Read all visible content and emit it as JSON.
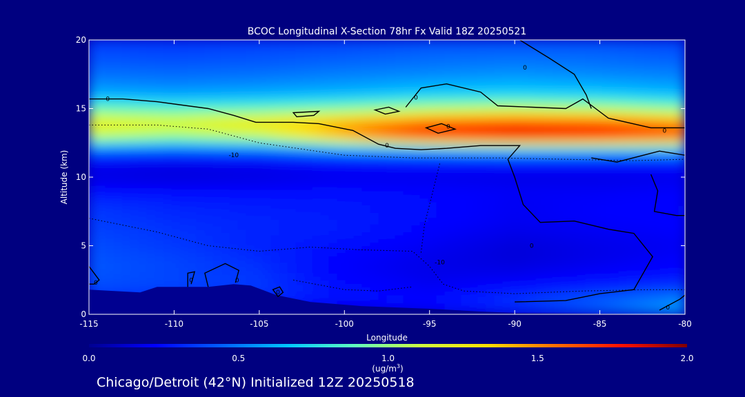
{
  "chart_data": {
    "type": "heatmap",
    "title": "BCOC Longitudinal X-Section 78hr  Fx Valid 18Z 20250521",
    "subtitle": "Chicago/Detroit (42°N) Initialized 12Z 20250518",
    "xlabel": "Longitude",
    "ylabel": "Altitude (km)",
    "xlim": [
      -115,
      -80
    ],
    "ylim": [
      0,
      20
    ],
    "x_ticks": [
      -115,
      -110,
      -105,
      -100,
      -95,
      -90,
      -85,
      -80
    ],
    "y_ticks": [
      0,
      5,
      10,
      15,
      20
    ],
    "colorbar": {
      "min": 0.0,
      "max": 2.0,
      "ticks": [
        "0.0",
        "0.5",
        "1.0",
        "1.5",
        "2.0"
      ],
      "unit": "(ug/m",
      "unit_exp": "3",
      "unit_close": ")",
      "palette": [
        "#000090",
        "#0000ff",
        "#0060ff",
        "#00c8ff",
        "#60ffc0",
        "#d0ff40",
        "#ffe000",
        "#ff7000",
        "#ff1000",
        "#800000"
      ]
    },
    "value_grid": {
      "longitudes": [
        -115,
        -110,
        -105,
        -100,
        -95,
        -90,
        -85,
        -80
      ],
      "altitudes": [
        0,
        1,
        2,
        3,
        4,
        5,
        6,
        7,
        8,
        9,
        10,
        11,
        12,
        13,
        14,
        15,
        16,
        17,
        18,
        19,
        20
      ],
      "values": [
        [
          0.05,
          0.05,
          0.08,
          0.12,
          0.18,
          0.25,
          0.4,
          0.6
        ],
        [
          0.3,
          0.3,
          0.32,
          0.25,
          0.25,
          0.35,
          0.45,
          0.55
        ],
        [
          0.4,
          0.38,
          0.35,
          0.25,
          0.2,
          0.25,
          0.3,
          0.35
        ],
        [
          0.42,
          0.38,
          0.34,
          0.22,
          0.18,
          0.18,
          0.22,
          0.25
        ],
        [
          0.42,
          0.38,
          0.32,
          0.22,
          0.18,
          0.15,
          0.18,
          0.22
        ],
        [
          0.4,
          0.35,
          0.3,
          0.25,
          0.2,
          0.15,
          0.18,
          0.2
        ],
        [
          0.38,
          0.34,
          0.3,
          0.28,
          0.22,
          0.18,
          0.2,
          0.22
        ],
        [
          0.36,
          0.32,
          0.3,
          0.28,
          0.24,
          0.2,
          0.22,
          0.24
        ],
        [
          0.34,
          0.3,
          0.28,
          0.27,
          0.24,
          0.2,
          0.22,
          0.24
        ],
        [
          0.25,
          0.24,
          0.24,
          0.25,
          0.23,
          0.21,
          0.21,
          0.22
        ],
        [
          0.16,
          0.15,
          0.16,
          0.18,
          0.18,
          0.17,
          0.17,
          0.18
        ],
        [
          0.2,
          0.18,
          0.2,
          0.24,
          0.25,
          0.25,
          0.25,
          0.25
        ],
        [
          0.45,
          0.42,
          0.45,
          0.55,
          0.6,
          0.65,
          0.65,
          0.65
        ],
        [
          1.1,
          1.0,
          1.1,
          1.45,
          1.75,
          1.85,
          1.8,
          1.65
        ],
        [
          1.25,
          1.2,
          1.3,
          1.45,
          1.6,
          1.65,
          1.62,
          1.5
        ],
        [
          0.9,
          0.85,
          0.88,
          0.95,
          1.05,
          1.1,
          1.05,
          0.95
        ],
        [
          0.62,
          0.6,
          0.62,
          0.65,
          0.7,
          0.72,
          0.7,
          0.65
        ],
        [
          0.52,
          0.5,
          0.52,
          0.55,
          0.58,
          0.6,
          0.58,
          0.55
        ],
        [
          0.45,
          0.44,
          0.45,
          0.48,
          0.5,
          0.52,
          0.5,
          0.48
        ],
        [
          0.4,
          0.38,
          0.4,
          0.42,
          0.45,
          0.46,
          0.45,
          0.42
        ],
        [
          0.36,
          0.35,
          0.36,
          0.38,
          0.4,
          0.4,
          0.4,
          0.38
        ]
      ]
    },
    "terrain": [
      [
        -115,
        1.8
      ],
      [
        -112,
        1.6
      ],
      [
        -111,
        2.0
      ],
      [
        -108,
        2.0
      ],
      [
        -106.5,
        2.2
      ],
      [
        -105.5,
        2.1
      ],
      [
        -104,
        1.4
      ],
      [
        -102,
        0.9
      ],
      [
        -99,
        0.6
      ],
      [
        -95,
        0.4
      ],
      [
        -92,
        0.2
      ],
      [
        -90,
        0.1
      ],
      [
        -85,
        0.05
      ],
      [
        -80,
        0.0
      ]
    ],
    "contours": [
      {
        "style": "solid",
        "points": [
          [
            -115,
            15.7
          ],
          [
            -113,
            15.7
          ],
          [
            -111,
            15.5
          ],
          [
            -108,
            15.0
          ],
          [
            -106.5,
            14.5
          ],
          [
            -105.2,
            14.0
          ],
          [
            -104.5,
            14.0
          ],
          [
            -103,
            14.0
          ],
          [
            -101.5,
            13.9
          ],
          [
            -99.5,
            13.4
          ],
          [
            -98,
            12.4
          ],
          [
            -97,
            12.1
          ],
          [
            -95.5,
            12.0
          ],
          [
            -94,
            12.1
          ],
          [
            -92,
            12.3
          ],
          [
            -89.7,
            12.3
          ],
          [
            -90.4,
            11.3
          ],
          [
            -90.0,
            10.0
          ],
          [
            -89.5,
            8.0
          ],
          [
            -88.5,
            6.7
          ],
          [
            -86.5,
            6.8
          ],
          [
            -84.5,
            6.2
          ],
          [
            -83,
            5.9
          ],
          [
            -81.9,
            4.2
          ],
          [
            -83,
            1.8
          ],
          [
            -85,
            1.5
          ],
          [
            -87,
            1.0
          ],
          [
            -90,
            0.9
          ]
        ]
      },
      {
        "style": "solid",
        "points": [
          [
            -96.4,
            15.1
          ],
          [
            -95.5,
            16.5
          ],
          [
            -94,
            16.8
          ],
          [
            -92,
            16.2
          ],
          [
            -91,
            15.2
          ],
          [
            -89,
            15.1
          ],
          [
            -87,
            15.0
          ],
          [
            -86,
            15.7
          ],
          [
            -84.5,
            14.3
          ],
          [
            -82,
            13.6
          ],
          [
            -80,
            13.6
          ]
        ]
      },
      {
        "style": "solid",
        "points": [
          [
            -89.7,
            20.0
          ],
          [
            -88,
            18.7
          ],
          [
            -86.5,
            17.5
          ],
          [
            -85.8,
            16.0
          ],
          [
            -85.5,
            15.0
          ]
        ]
      },
      {
        "style": "solid",
        "closed": true,
        "points": [
          [
            -95.2,
            13.6
          ],
          [
            -94.3,
            13.9
          ],
          [
            -93.5,
            13.5
          ],
          [
            -94.5,
            13.2
          ]
        ]
      },
      {
        "style": "solid",
        "closed": true,
        "points": [
          [
            -103,
            14.7
          ],
          [
            -101.5,
            14.8
          ],
          [
            -101.8,
            14.5
          ],
          [
            -102.8,
            14.4
          ]
        ]
      },
      {
        "style": "solid",
        "closed": true,
        "points": [
          [
            -98.2,
            14.9
          ],
          [
            -97.4,
            15.1
          ],
          [
            -96.8,
            14.8
          ],
          [
            -97.6,
            14.6
          ]
        ]
      },
      {
        "style": "solid",
        "points": [
          [
            -85.5,
            11.4
          ],
          [
            -84,
            11.1
          ],
          [
            -81.5,
            11.9
          ],
          [
            -80,
            11.6
          ]
        ]
      },
      {
        "style": "solid",
        "points": [
          [
            -82,
            10.2
          ],
          [
            -81.6,
            9.0
          ],
          [
            -81.8,
            7.5
          ],
          [
            -80.5,
            7.2
          ],
          [
            -80,
            7.2
          ]
        ]
      },
      {
        "style": "solid",
        "points": [
          [
            -115,
            3.5
          ],
          [
            -114.4,
            2.5
          ],
          [
            -114.7,
            2.2
          ],
          [
            -115,
            2.2
          ]
        ]
      },
      {
        "style": "solid",
        "points": [
          [
            -109.2,
            2.0
          ],
          [
            -109.2,
            3.0
          ],
          [
            -108.8,
            3.1
          ],
          [
            -109.0,
            2.2
          ]
        ]
      },
      {
        "style": "solid",
        "points": [
          [
            -108,
            2.0
          ],
          [
            -108.2,
            3.0
          ],
          [
            -107,
            3.7
          ],
          [
            -106.2,
            3.2
          ],
          [
            -106.4,
            2.3
          ]
        ]
      },
      {
        "style": "solid",
        "closed": true,
        "points": [
          [
            -104.2,
            1.8
          ],
          [
            -103.8,
            2.0
          ],
          [
            -103.6,
            1.6
          ],
          [
            -103.9,
            1.3
          ]
        ]
      },
      {
        "style": "solid",
        "points": [
          [
            -81.5,
            0.3
          ],
          [
            -80.3,
            1.1
          ],
          [
            -80,
            1.4
          ]
        ]
      },
      {
        "style": "dotted",
        "points": [
          [
            -115,
            13.8
          ],
          [
            -111,
            13.8
          ],
          [
            -108,
            13.5
          ],
          [
            -105,
            12.5
          ],
          [
            -100,
            11.6
          ],
          [
            -96,
            11.4
          ],
          [
            -91,
            11.4
          ],
          [
            -87,
            11.3
          ],
          [
            -83,
            11.2
          ],
          [
            -80,
            11.3
          ]
        ]
      },
      {
        "style": "dotted",
        "points": [
          [
            -115,
            7.0
          ],
          [
            -111,
            6.0
          ],
          [
            -108,
            5.0
          ],
          [
            -105,
            4.6
          ],
          [
            -102,
            4.9
          ],
          [
            -99,
            4.7
          ],
          [
            -96,
            4.6
          ],
          [
            -95.0,
            3.5
          ],
          [
            -94.2,
            2.2
          ],
          [
            -93.0,
            1.7
          ],
          [
            -90,
            1.5
          ],
          [
            -86,
            1.7
          ],
          [
            -82,
            1.8
          ],
          [
            -80,
            1.8
          ]
        ]
      },
      {
        "style": "dotted",
        "points": [
          [
            -103,
            2.5
          ],
          [
            -100,
            1.8
          ],
          [
            -98,
            1.7
          ],
          [
            -96,
            2.0
          ]
        ]
      },
      {
        "style": "dotted",
        "points": [
          [
            -95.5,
            4.5
          ],
          [
            -95.3,
            6.5
          ],
          [
            -94.8,
            9.0
          ],
          [
            -94.4,
            11.0
          ]
        ]
      }
    ],
    "contour_labels": [
      {
        "text": "0",
        "x": -113.9,
        "y": 15.7
      },
      {
        "text": "0",
        "x": -89.4,
        "y": 18.0
      },
      {
        "text": "0",
        "x": -95.8,
        "y": 15.8
      },
      {
        "text": "0",
        "x": -93.9,
        "y": 13.7
      },
      {
        "text": "0",
        "x": -97.5,
        "y": 12.3
      },
      {
        "text": "0",
        "x": -81.2,
        "y": 13.4
      },
      {
        "text": "0",
        "x": -89.0,
        "y": 5.0
      },
      {
        "text": "0",
        "x": -114.6,
        "y": 2.3
      },
      {
        "text": "0",
        "x": -109.0,
        "y": 2.5
      },
      {
        "text": "0",
        "x": -106.3,
        "y": 2.5
      },
      {
        "text": "0",
        "x": -103.9,
        "y": 1.6
      },
      {
        "text": "0",
        "x": -81.0,
        "y": 0.5
      },
      {
        "text": "-10",
        "x": -106.5,
        "y": 11.6
      },
      {
        "text": "-10",
        "x": -94.4,
        "y": 3.8
      }
    ]
  }
}
